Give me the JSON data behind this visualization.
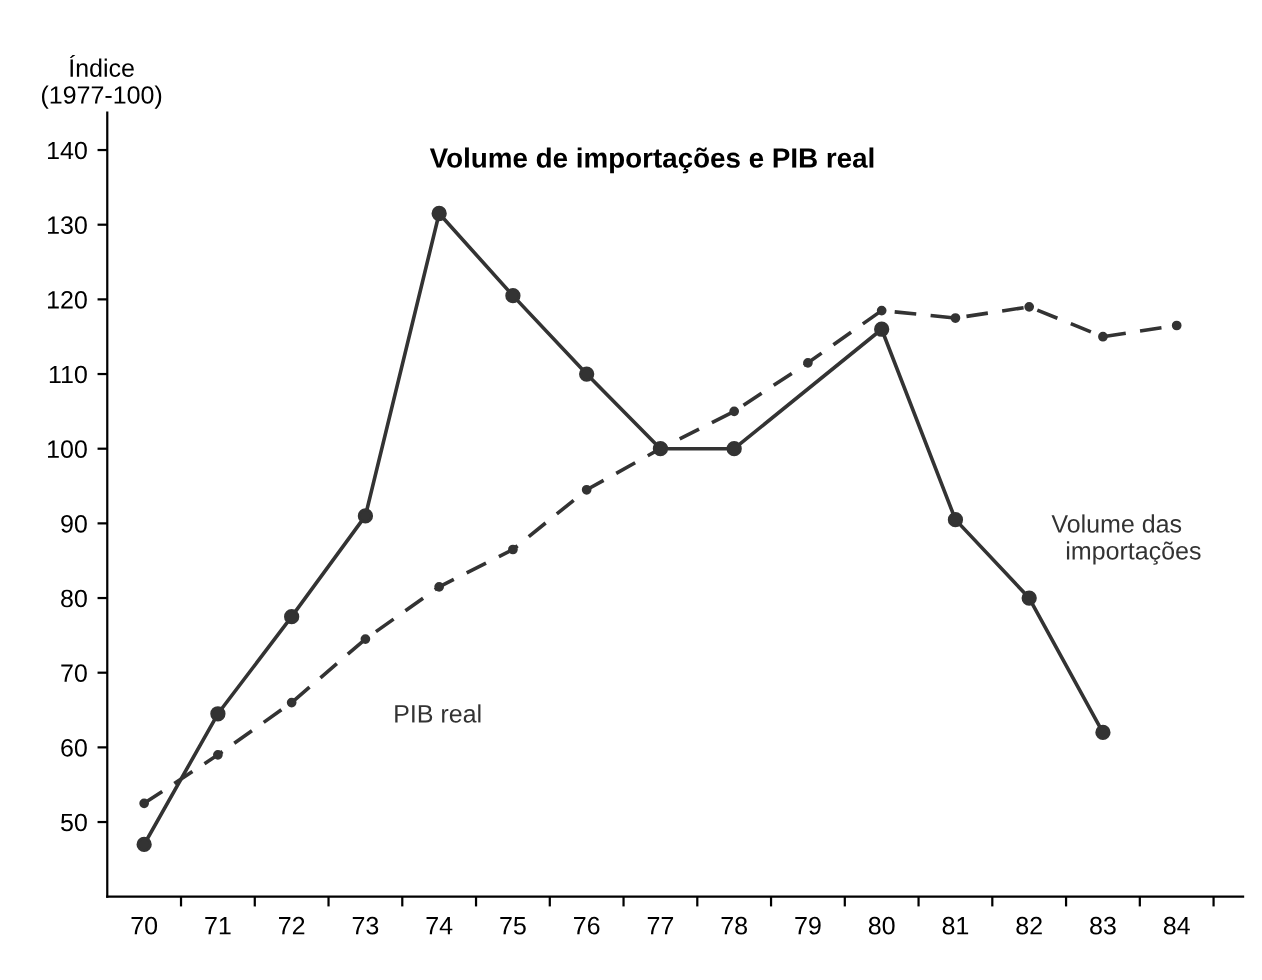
{
  "chart_data": {
    "type": "line",
    "title": "Volume de importações e PIB real",
    "ylabel": "Índice\n(1977-100)",
    "xlim": [
      69.5,
      84.9
    ],
    "ylim": [
      40,
      145
    ],
    "xticks": [
      {
        "value": 70,
        "label": "70"
      },
      {
        "value": 71,
        "label": "71"
      },
      {
        "value": 72,
        "label": "72"
      },
      {
        "value": 73,
        "label": "73"
      },
      {
        "value": 74,
        "label": "74"
      },
      {
        "value": 75,
        "label": "75"
      },
      {
        "value": 76,
        "label": "76"
      },
      {
        "value": 77,
        "label": "77"
      },
      {
        "value": 78,
        "label": "78"
      },
      {
        "value": 79,
        "label": "79"
      },
      {
        "value": 80,
        "label": "80"
      },
      {
        "value": 81,
        "label": "81"
      },
      {
        "value": 82,
        "label": "82"
      },
      {
        "value": 83,
        "label": "83"
      },
      {
        "value": 84,
        "label": "84"
      },
      {
        "value": 70.5,
        "label": null
      },
      {
        "value": 71.5,
        "label": null
      },
      {
        "value": 72.5,
        "label": null
      },
      {
        "value": 73.5,
        "label": null
      },
      {
        "value": 74.5,
        "label": null
      },
      {
        "value": 75.5,
        "label": null
      },
      {
        "value": 76.5,
        "label": null
      },
      {
        "value": 77.5,
        "label": null
      },
      {
        "value": 78.5,
        "label": null
      },
      {
        "value": 79.5,
        "label": null
      },
      {
        "value": 80.5,
        "label": null
      },
      {
        "value": 81.5,
        "label": null
      },
      {
        "value": 82.5,
        "label": null
      },
      {
        "value": 83.5,
        "label": null
      },
      {
        "value": 84.5,
        "label": null
      }
    ],
    "yticks": [
      50,
      60,
      70,
      80,
      90,
      100,
      110,
      120,
      130,
      140
    ],
    "grid": false,
    "legend": false,
    "marker": "circle",
    "series": [
      {
        "name": "Volume das\n  importações",
        "color": "#333333",
        "line_style": "solid",
        "x": [
          70,
          71,
          72,
          73,
          74,
          75,
          76,
          77,
          78,
          80,
          81,
          82,
          83
        ],
        "values": [
          47,
          64.5,
          77.5,
          91,
          131.5,
          120.5,
          110,
          100,
          100,
          116,
          90.5,
          80,
          62
        ]
      },
      {
        "name": "PIB real",
        "color": "#333333",
        "line_style": "dashed",
        "x": [
          70,
          71,
          72,
          73,
          74,
          75,
          76,
          77,
          78,
          79,
          80,
          81,
          82,
          83,
          84
        ],
        "values": [
          52.5,
          59,
          66,
          74.5,
          81.5,
          86.5,
          94.5,
          100,
          105,
          111.5,
          118.5,
          117.5,
          119,
          115,
          116.5
        ]
      }
    ]
  }
}
